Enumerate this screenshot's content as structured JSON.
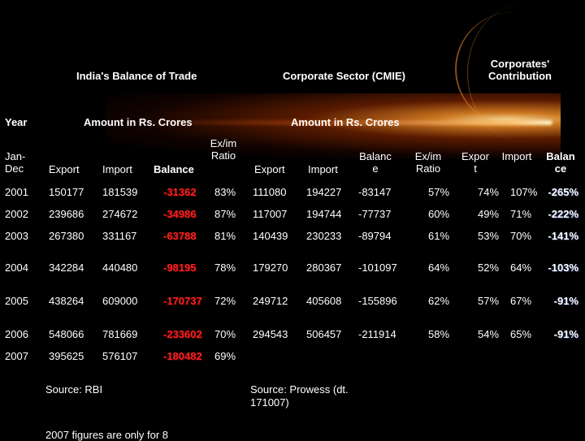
{
  "titles": {
    "bot": "India's Balance of Trade",
    "corp": "Corporate Sector (CMIE)",
    "contrib": "Corporates' Contribution"
  },
  "units": {
    "year": "Year",
    "left": "Amount in Rs. Crores",
    "right": "Amount in Rs. Crores"
  },
  "columns": {
    "jandec": "Jan-Dec",
    "export": "Export",
    "import": "Import",
    "balance": "Balance",
    "exim": "Ex/im Ratio",
    "c_export": "Export",
    "c_import": "Import",
    "c_balance": "Balance",
    "c_exim": "Ex/im Ratio",
    "p_export": "Export",
    "p_import": "Import",
    "p_balance": "Balance"
  },
  "rows": [
    {
      "year": "2001",
      "export": "150177",
      "import": "181539",
      "balance": "-31362",
      "exim": "83%",
      "c_export": "111080",
      "c_import": "194227",
      "c_balance": "-83147",
      "c_exim": "57%",
      "p_export": "74%",
      "p_import": "107%",
      "p_balance": "-265%"
    },
    {
      "year": "2002",
      "export": "239686",
      "import": "274672",
      "balance": "-34986",
      "exim": "87%",
      "c_export": "117007",
      "c_import": "194744",
      "c_balance": "-77737",
      "c_exim": "60%",
      "p_export": "49%",
      "p_import": "71%",
      "p_balance": "-222%"
    },
    {
      "year": "2003",
      "export": "267380",
      "import": "331167",
      "balance": "-63788",
      "exim": "81%",
      "c_export": "140439",
      "c_import": "230233",
      "c_balance": "-89794",
      "c_exim": "61%",
      "p_export": "53%",
      "p_import": "70%",
      "p_balance": "-141%"
    },
    {
      "year": "2004",
      "export": "342284",
      "import": "440480",
      "balance": "-98195",
      "exim": "78%",
      "c_export": "179270",
      "c_import": "280367",
      "c_balance": "-101097",
      "c_exim": "64%",
      "p_export": "52%",
      "p_import": "64%",
      "p_balance": "-103%"
    },
    {
      "year": "2005",
      "export": "438264",
      "import": "609000",
      "balance": "-170737",
      "exim": "72%",
      "c_export": "249712",
      "c_import": "405608",
      "c_balance": "-155896",
      "c_exim": "62%",
      "p_export": "57%",
      "p_import": "67%",
      "p_balance": "-91%"
    },
    {
      "year": "2006",
      "export": "548066",
      "import": "781669",
      "balance": "-233602",
      "exim": "70%",
      "c_export": "294543",
      "c_import": "506457",
      "c_balance": "-211914",
      "c_exim": "58%",
      "p_export": "54%",
      "p_import": "65%",
      "p_balance": "-91%"
    },
    {
      "year": "2007",
      "export": "395625",
      "import": "576107",
      "balance": "-180482",
      "exim": "69%",
      "c_export": "",
      "c_import": "",
      "c_balance": "",
      "c_exim": "",
      "p_export": "",
      "p_import": "",
      "p_balance": ""
    }
  ],
  "sources": {
    "rbi": "Source: RBI",
    "prowess": "Source: Prowess (dt. 171007)",
    "note": "2007 figures are only for 8"
  },
  "colors": {
    "background": "#000000",
    "negative": "#ff2020",
    "accent_flare": "#ff9628"
  }
}
